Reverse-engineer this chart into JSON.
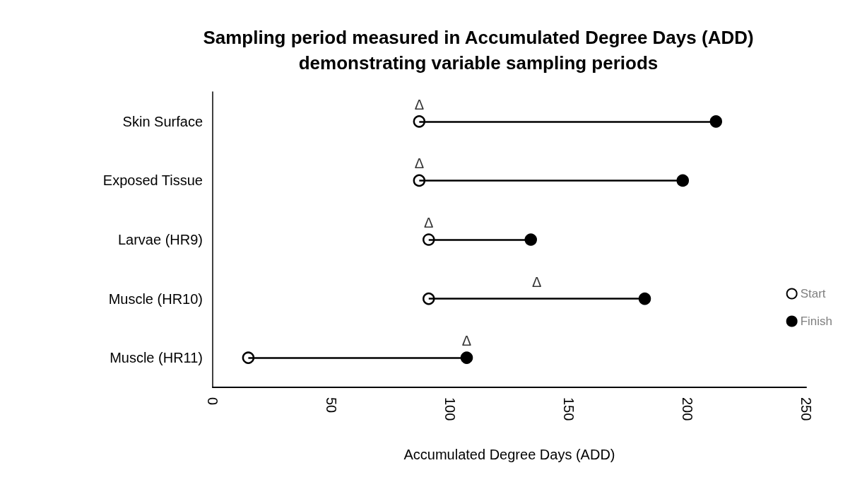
{
  "chart_data": {
    "type": "scatter",
    "orientation": "horizontal",
    "title": "Sampling period measured in Accumulated Degree Days (ADD)\ndemonstrating variable sampling periods",
    "xlabel": "Accumulated Degree Days (ADD)",
    "categories": [
      "Skin Surface",
      "Exposed Tissue",
      "Larvae (HR9)",
      "Muscle (HR10)",
      "Muscle (HR11)"
    ],
    "series": [
      {
        "name": "Start",
        "color": "#ffffff",
        "values": [
          87,
          87,
          91,
          91,
          15
        ]
      },
      {
        "name": "Finish",
        "color": "#000000",
        "values": [
          212,
          198,
          134,
          182,
          107
        ]
      }
    ],
    "xlim": [
      0,
      250
    ],
    "xticks": [
      0,
      50,
      100,
      150,
      200,
      250
    ],
    "grid": false,
    "legend": "right",
    "marker": "circle",
    "annotations": [
      {
        "text": "Δ",
        "x": 87,
        "y": "Skin Surface"
      },
      {
        "text": "Δ",
        "x": 87,
        "y": "Exposed Tissue"
      },
      {
        "text": "Δ",
        "x": 91,
        "y": "Larvae (HR9)"
      },
      "Δ",
      {
        "text": "Δ",
        "x": 107,
        "y": "Muscle (HR11)"
      }
    ]
  }
}
